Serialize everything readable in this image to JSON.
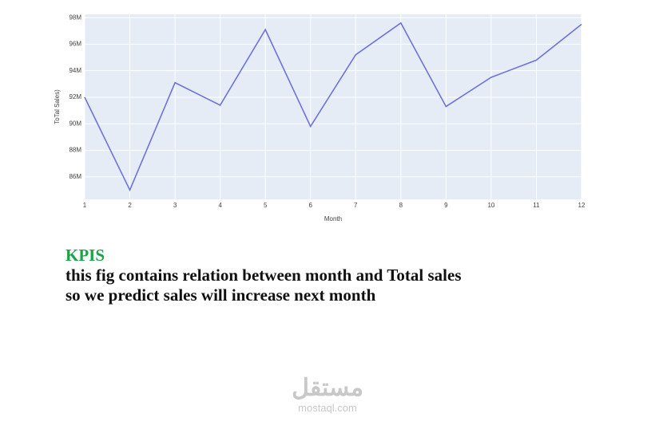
{
  "chart_data": {
    "type": "line",
    "x_label": "Month",
    "y_label": "ToTal Sales)",
    "x": [
      1,
      2,
      3,
      4,
      5,
      6,
      7,
      8,
      9,
      10,
      11,
      12
    ],
    "series": [
      {
        "color": "#6f72dc",
        "values": [
          92000000,
          85000000,
          93100000,
          91400000,
          97100000,
          89800000,
          95200000,
          97600000,
          91300000,
          93500000,
          94800000,
          97500000
        ]
      }
    ],
    "xlim": [
      1,
      12
    ],
    "xticks": [
      1,
      2,
      3,
      4,
      5,
      6,
      7,
      8,
      9,
      10,
      11,
      12
    ],
    "ylim": [
      84300000,
      98250000
    ],
    "yticks": [
      {
        "value": 86000000,
        "label": "86M"
      },
      {
        "value": 88000000,
        "label": "88M"
      },
      {
        "value": 90000000,
        "label": "90M"
      },
      {
        "value": 92000000,
        "label": "92M"
      },
      {
        "value": 94000000,
        "label": "94M"
      },
      {
        "value": 96000000,
        "label": "96M"
      },
      {
        "value": 98000000,
        "label": "98M"
      }
    ],
    "grid": true,
    "background": "#e5ecf6"
  },
  "text": {
    "heading": "KPIS",
    "lines": [
      "this fig contains relation between month and Total sales",
      "so we predict sales will increase next month"
    ]
  },
  "watermark": {
    "logo": "مستقل",
    "site": "mostaql.com"
  }
}
